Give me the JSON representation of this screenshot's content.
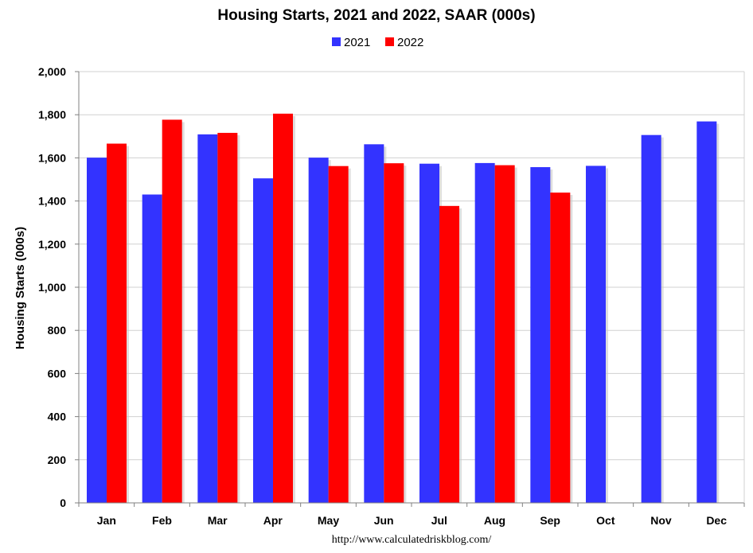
{
  "chart_data": {
    "type": "bar",
    "title": "Housing Starts,  2021 and 2022, SAAR (000s)",
    "ylabel": "Housing Starts (000s)",
    "xlabel": "",
    "categories": [
      "Jan",
      "Feb",
      "Mar",
      "Apr",
      "May",
      "Jun",
      "Jul",
      "Aug",
      "Sep",
      "Oct",
      "Nov",
      "Dec"
    ],
    "series": [
      {
        "name": "2021",
        "color": "#3333ff",
        "values": [
          1601,
          1430,
          1709,
          1505,
          1601,
          1663,
          1573,
          1576,
          1557,
          1563,
          1706,
          1769
        ]
      },
      {
        "name": "2022",
        "color": "#ff0000",
        "values": [
          1666,
          1777,
          1716,
          1805,
          1562,
          1575,
          1377,
          1566,
          1439,
          null,
          null,
          null
        ]
      }
    ],
    "ylim": [
      0,
      2000
    ],
    "yticks": [
      0,
      200,
      400,
      600,
      800,
      1000,
      1200,
      1400,
      1600,
      1800,
      2000
    ],
    "ytick_labels": [
      "0",
      "200",
      "400",
      "600",
      "800",
      "1,000",
      "1,200",
      "1,400",
      "1,600",
      "1,800",
      "2,000"
    ],
    "grid": true,
    "legend_position": "top-center",
    "source_text": "http://www.calculatedriskblog.com/"
  }
}
